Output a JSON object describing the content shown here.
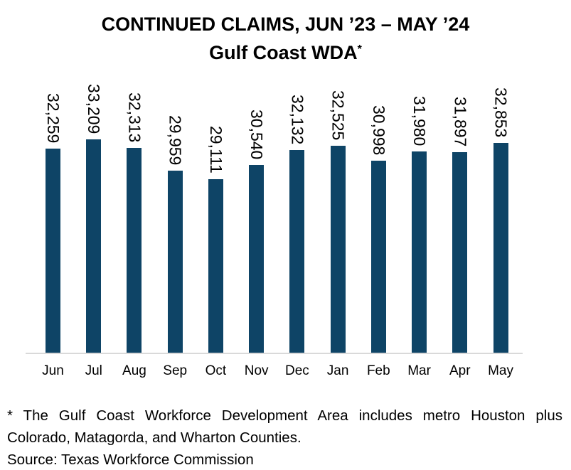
{
  "chart_data": {
    "type": "bar",
    "title_line1": "CONTINUED CLAIMS, JUN ’23 – MAY ’24",
    "title_line2": "Gulf Coast WDA",
    "title_superscript": "*",
    "categories": [
      "Jun",
      "Jul",
      "Aug",
      "Sep",
      "Oct",
      "Nov",
      "Dec",
      "Jan",
      "Feb",
      "Mar",
      "Apr",
      "May"
    ],
    "values": [
      32259,
      33209,
      32313,
      29959,
      29111,
      30540,
      32132,
      32525,
      30998,
      31980,
      31897,
      32853
    ],
    "value_labels": [
      "32,259",
      "33,209",
      "32,313",
      "29,959",
      "29,111",
      "30,540",
      "32,132",
      "32,525",
      "30,998",
      "31,980",
      "31,897",
      "32,853"
    ],
    "xlabel": "",
    "ylabel": "",
    "ylim": [
      11250,
      34000
    ],
    "grid": "off",
    "legend": "none",
    "bar_color": "#0E4466",
    "axis_line_color": "#D9D9D9",
    "text_color": "#000000"
  },
  "footnote": {
    "asterisk_note": "* The Gulf Coast Workforce Development Area includes metro Houston plus Colorado, Matagorda, and Wharton Counties.",
    "source": "Source: Texas Workforce Commission"
  }
}
